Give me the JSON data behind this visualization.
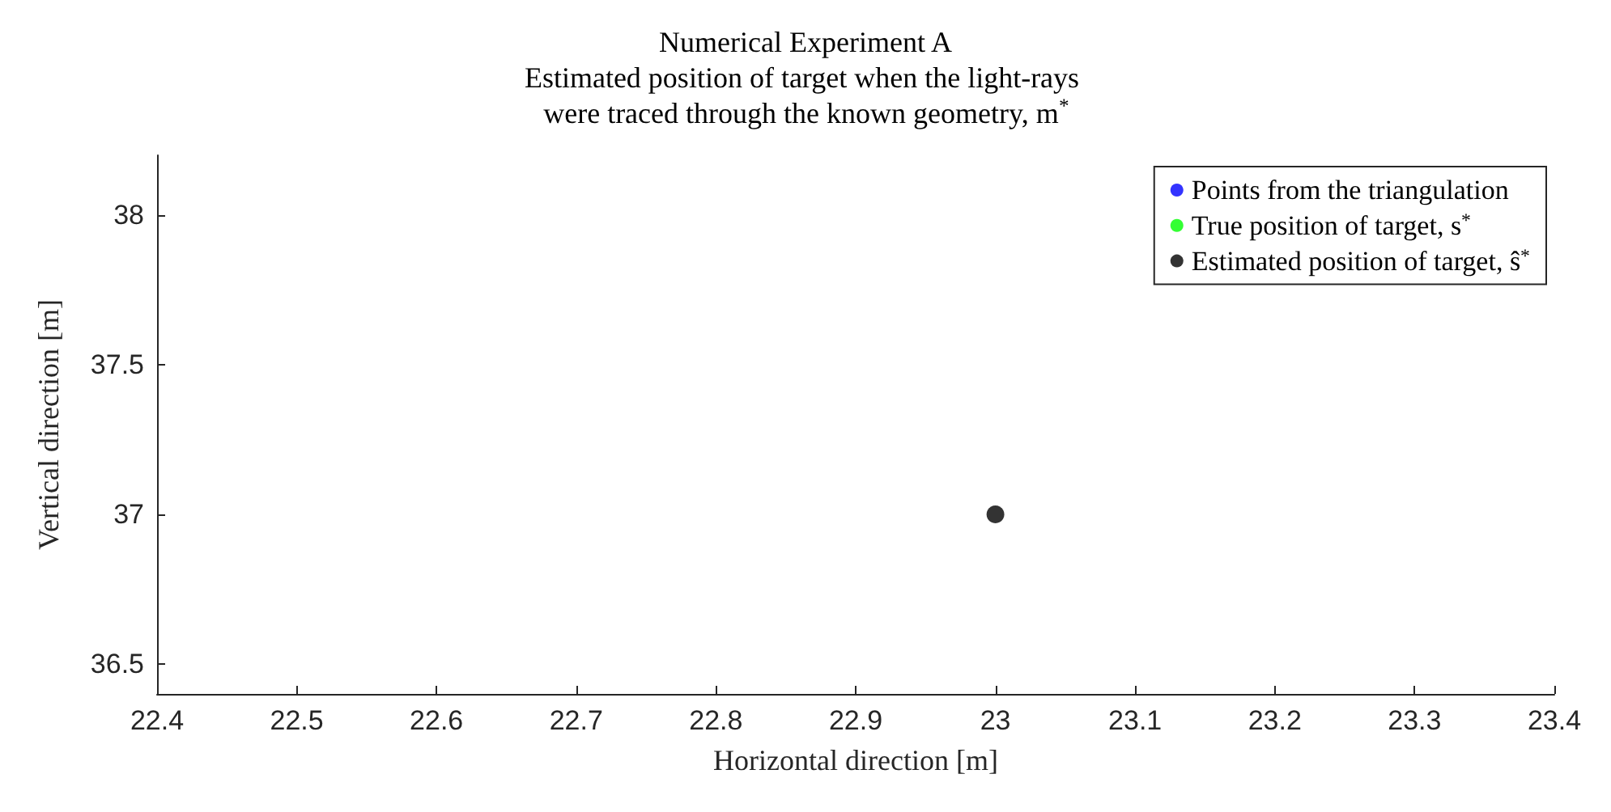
{
  "chart_data": {
    "type": "scatter",
    "title": "Numerical Experiment A",
    "subtitle": "Estimated position of target when the light-rays were traced through the known geometry, m$^{*}$",
    "xlabel": "Horizontal direction [m]",
    "ylabel": "Vertical direction [m]",
    "x": [
      23
    ],
    "series": [
      {
        "name": "Points from the triangulation",
        "color": "#0000ff",
        "values": [
          null
        ]
      },
      {
        "name": "True position of target, s$^{*}$",
        "color": "#00ff00",
        "values": [
          null
        ]
      },
      {
        "name": "Estimated position of target, ŝ$^{*}$",
        "color": "#000000",
        "values": [
          37
        ]
      }
    ],
    "xlim": [
      22.4,
      23.4
    ],
    "xticks": [
      22.4,
      22.5,
      22.6,
      22.7,
      22.8,
      22.9,
      23,
      23.1,
      23.2,
      23.3,
      23.4
    ],
    "ylim": [
      36.4,
      38.2
    ],
    "yticks": [
      36.5,
      37,
      37.5,
      38
    ],
    "grid": false,
    "legend": "top right",
    "marker": "circle"
  }
}
